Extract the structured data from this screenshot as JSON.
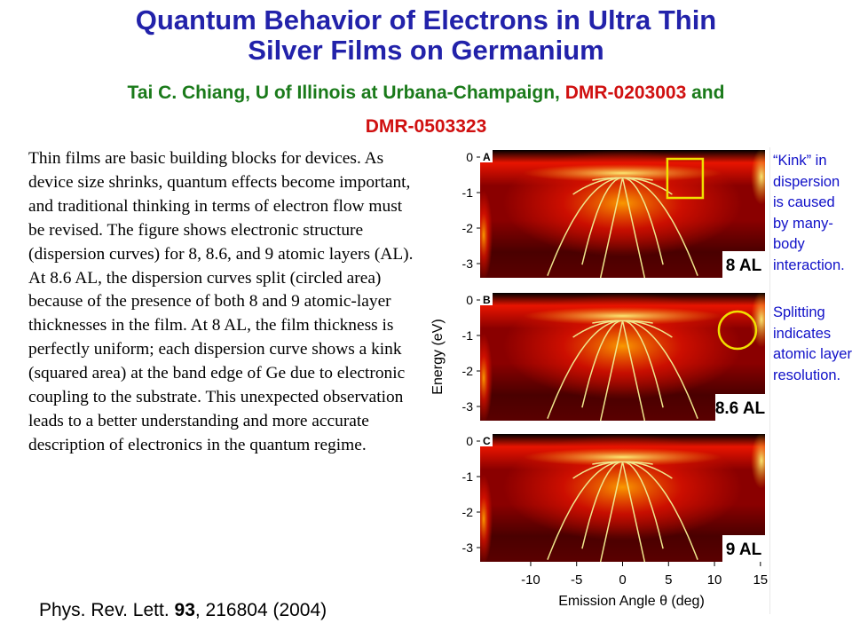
{
  "title_line1": "Quantum Behavior of Electrons in Ultra Thin",
  "title_line2": "Silver Films on Germanium",
  "authors": {
    "name": "Tai C. Chiang, U of Illinois at Urbana-Champaign, ",
    "grant1": "DMR-0203003",
    "and_word": " and",
    "grant2": "DMR-0503323"
  },
  "body_text": "Thin films are basic building blocks for devices. As device size shrinks, quantum effects become important, and traditional thinking in terms of electron flow must be revised. The figure shows electronic structure (dispersion curves) for 8, 8.6, and 9 atomic layers (AL). At 8.6 AL, the dispersion curves split (circled area) because of the presence of both 8 and 9 atomic-layer thicknesses in the film. At 8 AL, the film thickness is perfectly uniform; each dispersion curve shows a kink (squared area) at the band edge of Ge due to electronic coupling to the substrate. This unexpected observation leads to a better understanding and more accurate description of electronics in the quantum regime.",
  "citation": {
    "journal": "Phys. Rev. Lett. ",
    "volume": "93",
    "rest": ", 216804 (2004)"
  },
  "note_kink": "“Kink” in dispersion is caused by many-body interaction.",
  "note_split": "Splitting indicates atomic layer resolution.",
  "chart_data": {
    "type": "heatmap",
    "xlabel": "Emission Angle θ (deg)",
    "ylabel": "Energy (eV)",
    "xticks": [
      -10,
      -5,
      0,
      5,
      10,
      15
    ],
    "yticks": [
      0,
      -1,
      -2,
      -3
    ],
    "xlim": [
      -15.5,
      15.5
    ],
    "ylim": [
      -3.4,
      0.2
    ],
    "colormap": [
      "#000000",
      "#8a0000",
      "#e81400",
      "#ffa000",
      "#ffff80"
    ],
    "curve_color": "#f0e68c",
    "panels": [
      {
        "letter": "A",
        "label": "8 AL",
        "marker": "square",
        "marker_center": [
          6.8,
          -0.6
        ]
      },
      {
        "letter": "B",
        "label": "8.6 AL",
        "marker": "circle",
        "marker_center": [
          12.5,
          -0.85
        ]
      },
      {
        "letter": "C",
        "label": "9 AL",
        "marker": "none"
      }
    ]
  }
}
